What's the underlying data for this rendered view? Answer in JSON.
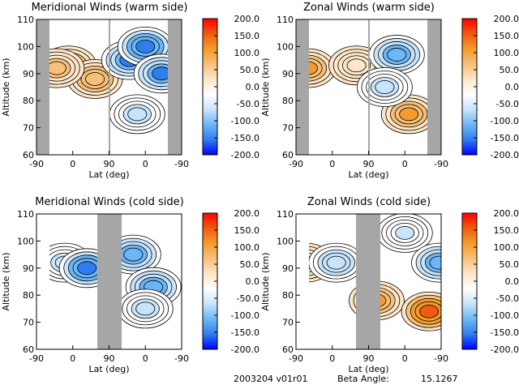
{
  "colors": {
    "gap": "#a6a6a6",
    "cmap": [
      "#0000ff",
      "#2f7ef0",
      "#6db6f5",
      "#c8e4fa",
      "#ffffff",
      "#fde6c8",
      "#f7c07a",
      "#f59b2a",
      "#f05a10",
      "#ff0000"
    ]
  },
  "chart_data": [
    {
      "type": "heatmap",
      "title": "Meridional Winds (warm side)",
      "xlabel": "Lat (deg)",
      "ylabel": "Altitude (km)",
      "xticks": [
        "-90",
        "0",
        "90",
        "0",
        "-90"
      ],
      "yticks": [
        "60",
        "70",
        "80",
        "90",
        "100",
        "110"
      ],
      "ylim": [
        60,
        110
      ],
      "colorbar": {
        "ticks": [
          "200.0",
          "150.0",
          "100.0",
          "50.0",
          "0.0",
          "-50.0",
          "-100.0",
          "-150.0",
          "-200.0"
        ],
        "range": [
          -200,
          200
        ]
      },
      "blobs": [
        {
          "lat": -10,
          "alt": 93,
          "v": 110,
          "s": "asc"
        },
        {
          "lat": 55,
          "alt": 88,
          "v": 80,
          "s": "asc"
        },
        {
          "lat": -40,
          "alt": 92,
          "v": 60,
          "s": "asc"
        },
        {
          "lat": 40,
          "alt": 95,
          "v": -140,
          "s": "desc"
        },
        {
          "lat": 0,
          "alt": 100,
          "v": -150,
          "s": "desc"
        },
        {
          "lat": -40,
          "alt": 90,
          "v": -140,
          "s": "desc"
        },
        {
          "lat": 20,
          "alt": 75,
          "v": -60,
          "s": "desc"
        }
      ]
    },
    {
      "type": "heatmap",
      "title": "Zonal Winds (warm side)",
      "xlabel": "Lat (deg)",
      "ylabel": "Altitude (km)",
      "xticks": [
        "-90",
        "0",
        "90",
        "0",
        "-90"
      ],
      "yticks": [
        "60",
        "70",
        "80",
        "90",
        "100",
        "110"
      ],
      "ylim": [
        60,
        110
      ],
      "colorbar": {
        "ticks": [
          "200.0",
          "150.0",
          "100.0",
          "50.0",
          "0.0",
          "-50.0",
          "-100.0",
          "-150.0",
          "-200.0"
        ],
        "range": [
          -200,
          200
        ]
      },
      "blobs": [
        {
          "lat": -60,
          "alt": 92,
          "v": 90,
          "s": "asc"
        },
        {
          "lat": 60,
          "alt": 93,
          "v": 40,
          "s": "asc"
        },
        {
          "lat": 20,
          "alt": 97,
          "v": -120,
          "s": "desc"
        },
        {
          "lat": -10,
          "alt": 75,
          "v": 110,
          "s": "desc"
        },
        {
          "lat": 50,
          "alt": 85,
          "v": -70,
          "s": "desc"
        }
      ]
    },
    {
      "type": "heatmap",
      "title": "Meridional Winds (cold side)",
      "xlabel": "Lat (deg)",
      "ylabel": "Altitude (km)",
      "xticks": [
        "-90",
        "0",
        "90",
        "0",
        "-90"
      ],
      "yticks": [
        "60",
        "70",
        "80",
        "90",
        "100",
        "110"
      ],
      "ylim": [
        60,
        110
      ],
      "colorbar": {
        "ticks": [
          "200.0",
          "150.0",
          "100.0",
          "50.0",
          "0.0",
          "-50.0",
          "-100.0",
          "-150.0",
          "-200.0"
        ],
        "range": [
          -200,
          200
        ]
      },
      "blobs": [
        {
          "lat": -20,
          "alt": 92,
          "v": -60,
          "s": "asc"
        },
        {
          "lat": 35,
          "alt": 90,
          "v": -150,
          "s": "asc"
        },
        {
          "lat": 30,
          "alt": 95,
          "v": -120,
          "s": "desc"
        },
        {
          "lat": -20,
          "alt": 83,
          "v": -130,
          "s": "desc"
        },
        {
          "lat": 0,
          "alt": 75,
          "v": -60,
          "s": "desc"
        }
      ]
    },
    {
      "type": "heatmap",
      "title": "Zonal Winds (cold side)",
      "xlabel": "Lat (deg)",
      "ylabel": "Altitude (km)",
      "xticks": [
        "-90",
        "0",
        "90",
        "0",
        "-90"
      ],
      "yticks": [
        "60",
        "70",
        "80",
        "90",
        "100",
        "110"
      ],
      "ylim": [
        60,
        110
      ],
      "colorbar": {
        "ticks": [
          "200.0",
          "150.0",
          "100.0",
          "50.0",
          "0.0",
          "-50.0",
          "-100.0",
          "-150.0",
          "-200.0"
        ],
        "range": [
          -200,
          200
        ]
      },
      "blobs": [
        {
          "lat": -65,
          "alt": 92,
          "v": 50,
          "s": "asc"
        },
        {
          "lat": 10,
          "alt": 92,
          "v": -80,
          "s": "asc"
        },
        {
          "lat": 70,
          "alt": 78,
          "v": 100,
          "s": "desc"
        },
        {
          "lat": -60,
          "alt": 74,
          "v": 160,
          "s": "desc"
        },
        {
          "lat": 0,
          "alt": 103,
          "v": -50,
          "s": "desc"
        },
        {
          "lat": -85,
          "alt": 92,
          "v": -120,
          "s": "desc"
        }
      ]
    }
  ],
  "footer": {
    "date_version": "2003204 v01r01",
    "beta_label": "Beta Angle:",
    "beta_value": "15.1267"
  }
}
